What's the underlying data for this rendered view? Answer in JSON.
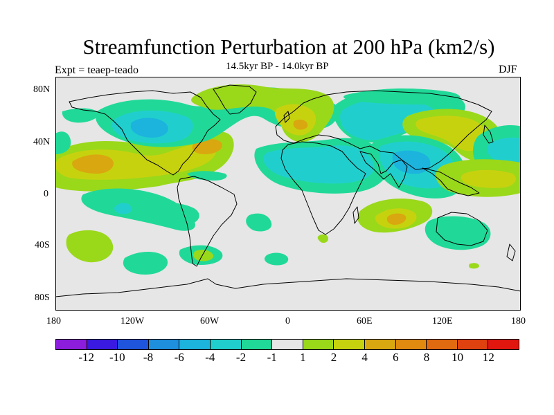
{
  "title": "Streamfunction Perturbation at 200 hPa (km2/s)",
  "experiment_label": "Expt = teaep-teado",
  "period_label": "14.5kyr BP - 14.0kyr BP",
  "season_label": "DJF",
  "lat_ticks": [
    "80N",
    "40N",
    "0",
    "40S",
    "80S"
  ],
  "lon_ticks": [
    "180",
    "120W",
    "60W",
    "0",
    "60E",
    "120E",
    "180"
  ],
  "colorbar": {
    "colors": [
      "#8c1ddd",
      "#3a1ae0",
      "#1f55dd",
      "#1d8fdd",
      "#1cb3dd",
      "#20cfcd",
      "#20d998",
      "#e6e6e6",
      "#9ad81a",
      "#c7d20f",
      "#d9a70f",
      "#e08a0f",
      "#e06a0f",
      "#e0420f",
      "#e0160f"
    ],
    "labels": [
      "-12",
      "-10",
      "-8",
      "-6",
      "-4",
      "-2",
      "-1",
      "1",
      "2",
      "4",
      "6",
      "8",
      "10",
      "12"
    ]
  },
  "colors": {
    "background": "#e6e6e6",
    "c_neg1": "#20d998",
    "c_neg2": "#20cfcd",
    "c_neg4": "#1cb3dd",
    "c_pos1": "#9ad81a",
    "c_pos2": "#c7d20f",
    "c_pos4": "#d9a70f"
  }
}
